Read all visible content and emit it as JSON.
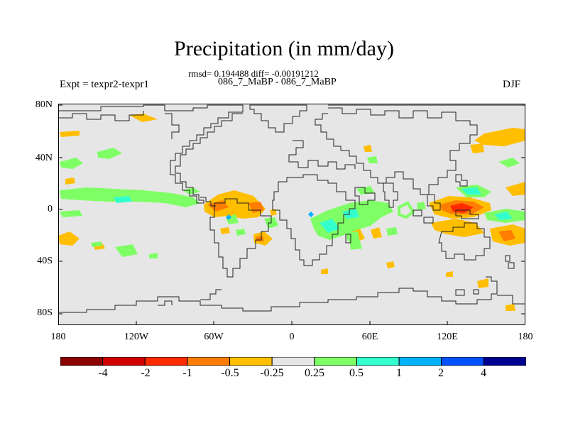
{
  "header": {
    "title": "Precipitation (in mm/day)",
    "stats": "rmsd= 0.194488 diff= -0.00191212",
    "experiment_pair": "086_7_MaBP - 086_7_MaBP",
    "experiment": "Expt = texpr2-texpr1",
    "season": "DJF"
  },
  "map": {
    "projection": "cylindrical equidistant",
    "lon_range": [
      -180,
      180
    ],
    "lat_range": [
      -90,
      90
    ],
    "background_color": "#e6e6e6",
    "land_outline": "coarse-grid coastlines",
    "lat_ticks": [
      "80N",
      "40N",
      "0",
      "40S",
      "80S"
    ],
    "lon_ticks": [
      "180",
      "120W",
      "60W",
      "0",
      "60E",
      "120E",
      "180"
    ]
  },
  "colorbar": {
    "labels": [
      "-4",
      "-2",
      "-1",
      "-0.5",
      "-0.25",
      "0.25",
      "0.5",
      "1",
      "2",
      "4"
    ],
    "colors": [
      "#8b0000",
      "#d00000",
      "#ff2a00",
      "#ff7d00",
      "#ffbe00",
      "#e6e6e6",
      "#7fff66",
      "#33ffcc",
      "#00b2ff",
      "#0050ff",
      "#000090"
    ]
  }
}
